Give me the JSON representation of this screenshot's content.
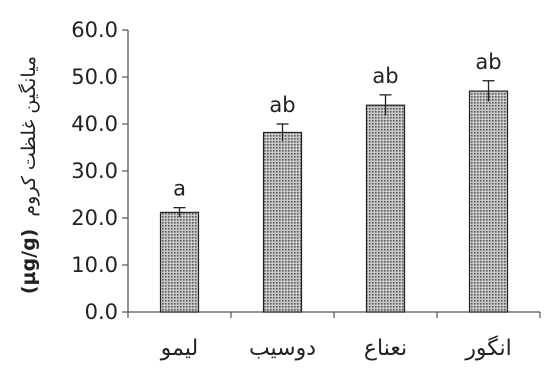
{
  "chart_data": {
    "type": "bar",
    "title": "",
    "categories": [
      "لیمو",
      "دوسیب",
      "نعناع",
      "انگور"
    ],
    "values": [
      21.2,
      38.2,
      44.0,
      47.0
    ],
    "errors": [
      1.0,
      1.8,
      2.2,
      2.2
    ],
    "data_labels": [
      "a",
      "ab",
      "ab",
      "ab"
    ],
    "xlabel": "",
    "ylabel": "میانگین غلظت کروم",
    "ylabel_unit": "(µg/g)",
    "ylim": [
      0,
      60
    ],
    "yticks": [
      0,
      10,
      20,
      30,
      40,
      50,
      60
    ],
    "ytick_labels": [
      "0.0",
      "10.0",
      "20.0",
      "30.0",
      "40.0",
      "50.0",
      "60.0"
    ],
    "grid": false,
    "legend": "none",
    "colors": {
      "bar_fill": "#9a9a9a",
      "bar_stroke": "#222222",
      "axis": "#555555"
    }
  }
}
